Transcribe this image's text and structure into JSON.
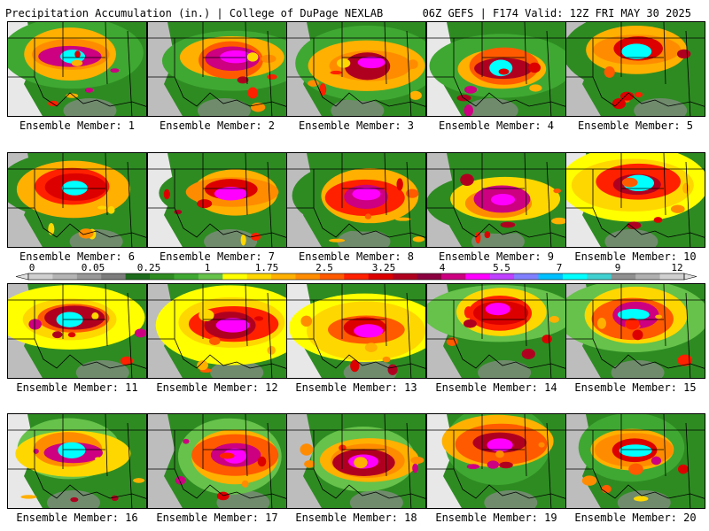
{
  "header": {
    "left_title": "Precipitation Accumulation (in.) | College of DuPage NEXLAB",
    "right_title": "06Z GEFS | F174 Valid: 12Z FRI MAY 30 2025"
  },
  "panels": [
    {
      "label": "Ensemble Member: 1"
    },
    {
      "label": "Ensemble Member: 2"
    },
    {
      "label": "Ensemble Member: 3"
    },
    {
      "label": "Ensemble Member: 4"
    },
    {
      "label": "Ensemble Member: 5"
    },
    {
      "label": "Ensemble Member: 6"
    },
    {
      "label": "Ensemble Member: 7"
    },
    {
      "label": "Ensemble Member: 8"
    },
    {
      "label": "Ensemble Member: 9"
    },
    {
      "label": "Ensemble Member: 10"
    },
    {
      "label": "Ensemble Member: 11"
    },
    {
      "label": "Ensemble Member: 12"
    },
    {
      "label": "Ensemble Member: 13"
    },
    {
      "label": "Ensemble Member: 14"
    },
    {
      "label": "Ensemble Member: 15"
    },
    {
      "label": "Ensemble Member: 16"
    },
    {
      "label": "Ensemble Member: 17"
    },
    {
      "label": "Ensemble Member: 18"
    },
    {
      "label": "Ensemble Member: 19"
    },
    {
      "label": "Ensemble Member: 20"
    }
  ],
  "colorbar": {
    "tick_labels": [
      "0",
      "0.05",
      "0.25",
      "1",
      "1.75",
      "2.5",
      "3.25",
      "4",
      "5.5",
      "7",
      "9",
      "12"
    ],
    "colors": [
      "#d0d0d0",
      "#b4b4b4",
      "#989898",
      "#7c7c7c",
      "#1c6b1c",
      "#2e8b22",
      "#3fa832",
      "#66c24a",
      "#ffff00",
      "#ffd700",
      "#ffb000",
      "#ff8c00",
      "#ff5a00",
      "#ff2000",
      "#dd0000",
      "#b00020",
      "#8b0040",
      "#cc0080",
      "#ff00ff",
      "#c040ff",
      "#8080ff",
      "#00c0ff",
      "#00ffff",
      "#40d0d0",
      "#909090",
      "#b0b0b0",
      "#d0d0d0"
    ]
  }
}
